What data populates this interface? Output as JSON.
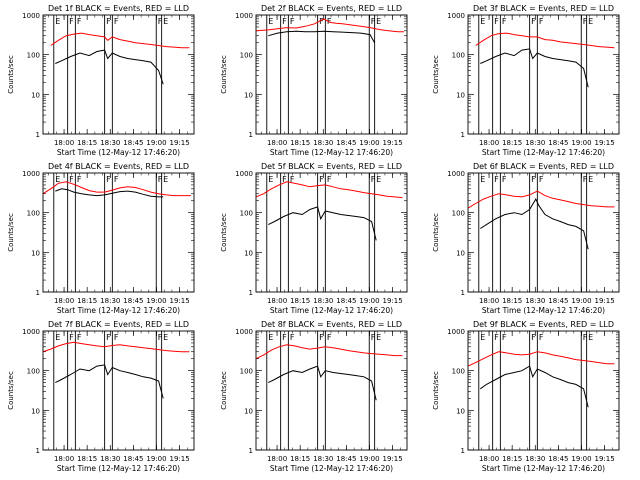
{
  "colors": {
    "events": "#000000",
    "lld": "#ff0000",
    "axis": "#000000",
    "background": "#ffffff"
  },
  "shared": {
    "ylabel": "Counts/sec",
    "xlabel": "Start Time (12-May-12 17:46:20)",
    "yscale": "log",
    "ylim": [
      1,
      1000
    ],
    "y_ticks": [
      "1",
      "10",
      "100",
      "1000"
    ],
    "x_ticks": [
      "18:00",
      "18:15",
      "18:30",
      "18:45",
      "19:00",
      "19:15"
    ],
    "x_tick_minutes": [
      13.67,
      28.67,
      43.67,
      58.67,
      73.67,
      88.67
    ],
    "xlim_minutes": [
      0,
      98
    ],
    "flag_labels": [
      "E",
      "F",
      "F",
      "F",
      "F",
      "F",
      "E"
    ],
    "flag_minutes": [
      7,
      16,
      21,
      40,
      45,
      73.5,
      77
    ]
  },
  "chart_data": [
    {
      "type": "line",
      "title": "Det 1f BLACK = Events, RED = LLD",
      "series": [
        {
          "name": "Events",
          "x": [
            8,
            12,
            18,
            24,
            30,
            35,
            40,
            42,
            45,
            50,
            55,
            60,
            65,
            70,
            75,
            78
          ],
          "y": [
            60,
            70,
            90,
            110,
            95,
            120,
            130,
            80,
            110,
            90,
            80,
            75,
            70,
            65,
            40,
            18
          ]
        },
        {
          "name": "LLD",
          "x": [
            5,
            10,
            15,
            20,
            25,
            30,
            35,
            40,
            42,
            45,
            50,
            55,
            60,
            65,
            70,
            75,
            80,
            85,
            90,
            95
          ],
          "y": [
            170,
            230,
            300,
            330,
            350,
            320,
            300,
            280,
            230,
            280,
            240,
            220,
            200,
            190,
            180,
            170,
            160,
            155,
            150,
            150
          ]
        }
      ]
    },
    {
      "type": "line",
      "title": "Det 2f BLACK = Events, RED = LLD",
      "series": [
        {
          "name": "Events",
          "x": [
            8,
            14,
            20,
            26,
            32,
            38,
            44,
            50,
            56,
            62,
            68,
            74,
            77
          ],
          "y": [
            300,
            350,
            380,
            390,
            380,
            380,
            390,
            380,
            370,
            360,
            350,
            320,
            200
          ]
        },
        {
          "name": "LLD",
          "x": [
            0,
            8,
            14,
            20,
            26,
            32,
            38,
            44,
            48,
            52,
            56,
            62,
            68,
            74,
            80,
            86,
            92,
            96
          ],
          "y": [
            400,
            420,
            450,
            480,
            470,
            520,
            600,
            800,
            650,
            620,
            600,
            560,
            520,
            480,
            430,
            400,
            380,
            380
          ]
        }
      ]
    },
    {
      "type": "line",
      "title": "Det 3f BLACK = Events, RED = LLD",
      "series": [
        {
          "name": "Events",
          "x": [
            8,
            12,
            18,
            24,
            30,
            35,
            40,
            42,
            45,
            50,
            55,
            60,
            65,
            70,
            75,
            78
          ],
          "y": [
            60,
            70,
            90,
            110,
            95,
            130,
            140,
            80,
            110,
            90,
            80,
            75,
            70,
            65,
            45,
            15
          ]
        },
        {
          "name": "LLD",
          "x": [
            5,
            10,
            15,
            20,
            25,
            30,
            35,
            40,
            45,
            50,
            55,
            60,
            65,
            70,
            75,
            80,
            85,
            90,
            95
          ],
          "y": [
            170,
            230,
            300,
            340,
            350,
            320,
            300,
            280,
            280,
            240,
            230,
            210,
            200,
            190,
            180,
            170,
            160,
            155,
            150
          ]
        }
      ]
    },
    {
      "type": "line",
      "title": "Det 4f BLACK = Events, RED = LLD",
      "series": [
        {
          "name": "Events",
          "x": [
            8,
            12,
            16,
            20,
            25,
            30,
            35,
            40,
            45,
            50,
            55,
            60,
            65,
            70,
            75,
            78
          ],
          "y": [
            350,
            400,
            380,
            330,
            300,
            280,
            270,
            280,
            310,
            340,
            350,
            330,
            290,
            260,
            250,
            250
          ]
        },
        {
          "name": "LLD",
          "x": [
            0,
            5,
            10,
            15,
            20,
            25,
            30,
            35,
            40,
            45,
            50,
            55,
            60,
            65,
            70,
            75,
            80,
            85,
            90,
            96
          ],
          "y": [
            300,
            400,
            550,
            600,
            520,
            430,
            360,
            330,
            330,
            370,
            420,
            450,
            430,
            380,
            330,
            300,
            280,
            270,
            270,
            270
          ]
        }
      ]
    },
    {
      "type": "line",
      "title": "Det 5f BLACK = Events, RED = LLD",
      "series": [
        {
          "name": "Events",
          "x": [
            8,
            12,
            18,
            24,
            30,
            35,
            40,
            42,
            45,
            50,
            55,
            60,
            65,
            70,
            75,
            78
          ],
          "y": [
            50,
            60,
            80,
            100,
            90,
            120,
            140,
            70,
            110,
            100,
            90,
            85,
            80,
            75,
            60,
            20
          ]
        },
        {
          "name": "LLD",
          "x": [
            0,
            5,
            10,
            15,
            20,
            25,
            30,
            35,
            40,
            45,
            50,
            55,
            60,
            65,
            70,
            75,
            80,
            85,
            90,
            95
          ],
          "y": [
            250,
            300,
            400,
            500,
            600,
            550,
            500,
            450,
            480,
            500,
            450,
            400,
            380,
            350,
            320,
            300,
            280,
            260,
            250,
            240
          ]
        }
      ]
    },
    {
      "type": "line",
      "title": "Det 6f BLACK = Events, RED = LLD",
      "series": [
        {
          "name": "Events",
          "x": [
            8,
            12,
            18,
            24,
            30,
            35,
            40,
            44,
            46,
            50,
            55,
            60,
            65,
            70,
            75,
            78
          ],
          "y": [
            40,
            50,
            70,
            90,
            100,
            90,
            120,
            220,
            150,
            90,
            70,
            60,
            50,
            45,
            35,
            12
          ]
        },
        {
          "name": "LLD",
          "x": [
            0,
            5,
            10,
            15,
            20,
            25,
            30,
            35,
            40,
            45,
            50,
            55,
            60,
            65,
            70,
            75,
            80,
            85,
            90,
            95
          ],
          "y": [
            130,
            170,
            220,
            260,
            300,
            280,
            260,
            250,
            280,
            350,
            270,
            230,
            210,
            190,
            170,
            160,
            150,
            145,
            140,
            140
          ]
        }
      ]
    },
    {
      "type": "line",
      "title": "Det 7f BLACK = Events, RED = LLD",
      "series": [
        {
          "name": "Events",
          "x": [
            8,
            12,
            18,
            24,
            30,
            35,
            40,
            42,
            45,
            50,
            55,
            60,
            65,
            70,
            75,
            78
          ],
          "y": [
            50,
            60,
            80,
            110,
            100,
            130,
            140,
            80,
            120,
            100,
            90,
            80,
            70,
            65,
            55,
            20
          ]
        },
        {
          "name": "LLD",
          "x": [
            0,
            5,
            10,
            15,
            20,
            25,
            30,
            35,
            40,
            45,
            50,
            55,
            60,
            65,
            70,
            75,
            80,
            85,
            90,
            95
          ],
          "y": [
            300,
            350,
            420,
            480,
            520,
            480,
            450,
            420,
            400,
            430,
            450,
            420,
            400,
            380,
            360,
            340,
            320,
            310,
            300,
            300
          ]
        }
      ]
    },
    {
      "type": "line",
      "title": "Det 8f BLACK = Events, RED = LLD",
      "series": [
        {
          "name": "Events",
          "x": [
            8,
            12,
            18,
            24,
            30,
            35,
            40,
            42,
            45,
            50,
            55,
            60,
            65,
            70,
            75,
            78
          ],
          "y": [
            50,
            60,
            80,
            100,
            90,
            110,
            130,
            70,
            100,
            90,
            85,
            80,
            75,
            70,
            55,
            18
          ]
        },
        {
          "name": "LLD",
          "x": [
            0,
            5,
            10,
            15,
            20,
            25,
            30,
            35,
            40,
            45,
            50,
            55,
            60,
            65,
            70,
            75,
            80,
            85,
            90,
            95
          ],
          "y": [
            200,
            250,
            330,
            400,
            450,
            420,
            380,
            350,
            370,
            400,
            380,
            350,
            320,
            300,
            280,
            270,
            260,
            250,
            240,
            240
          ]
        }
      ]
    },
    {
      "type": "line",
      "title": "Det 9f BLACK = Events, RED = LLD",
      "series": [
        {
          "name": "Events",
          "x": [
            8,
            12,
            18,
            24,
            30,
            35,
            40,
            42,
            45,
            50,
            55,
            60,
            65,
            70,
            75,
            78
          ],
          "y": [
            35,
            45,
            60,
            80,
            90,
            100,
            130,
            70,
            110,
            90,
            70,
            60,
            50,
            45,
            35,
            12
          ]
        },
        {
          "name": "LLD",
          "x": [
            0,
            5,
            10,
            15,
            20,
            25,
            30,
            35,
            40,
            45,
            50,
            55,
            60,
            65,
            70,
            75,
            80,
            85,
            90,
            95
          ],
          "y": [
            130,
            160,
            200,
            250,
            300,
            280,
            260,
            250,
            260,
            300,
            280,
            250,
            230,
            210,
            190,
            180,
            170,
            160,
            150,
            150
          ]
        }
      ]
    }
  ]
}
